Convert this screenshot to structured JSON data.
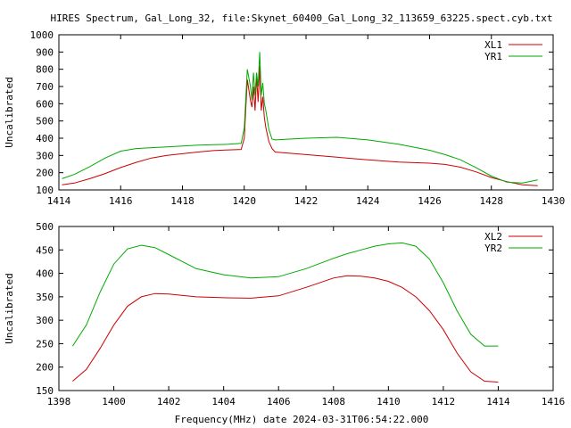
{
  "title": "HIRES Spectrum, Gal_Long_32, file:Skynet_60400_Gal_Long_32_113659_63225.spect.cyb.txt",
  "xlabel": "Frequency(MHz) date 2024-03-31T06:54:22.000",
  "colors": {
    "red": "#cc0000",
    "green": "#00aa00",
    "axis": "#000000"
  },
  "chart_data": [
    {
      "type": "line",
      "ylabel": "Uncalibrated",
      "xlim": [
        1414,
        1430
      ],
      "ylim": [
        100,
        1000
      ],
      "xticks": [
        1414,
        1416,
        1418,
        1420,
        1422,
        1424,
        1426,
        1428,
        1430
      ],
      "yticks": [
        100,
        200,
        300,
        400,
        500,
        600,
        700,
        800,
        900,
        1000
      ],
      "legend": "top-right",
      "series": [
        {
          "name": "XL1",
          "color": "#cc0000",
          "x": [
            1414.1,
            1414.5,
            1415.0,
            1415.5,
            1416.0,
            1416.5,
            1417.0,
            1417.5,
            1418.0,
            1418.5,
            1419.0,
            1419.5,
            1419.9,
            1420.0,
            1420.1,
            1420.2,
            1420.25,
            1420.3,
            1420.35,
            1420.4,
            1420.45,
            1420.5,
            1420.55,
            1420.6,
            1420.65,
            1420.7,
            1420.8,
            1420.9,
            1421.0,
            1422.0,
            1423.0,
            1424.0,
            1425.0,
            1426.0,
            1426.5,
            1427.0,
            1427.5,
            1428.0,
            1428.5,
            1429.0,
            1429.5
          ],
          "y": [
            130,
            140,
            165,
            195,
            230,
            260,
            285,
            300,
            310,
            320,
            328,
            332,
            335,
            400,
            740,
            620,
            580,
            700,
            560,
            760,
            610,
            820,
            560,
            640,
            520,
            460,
            380,
            340,
            320,
            305,
            290,
            275,
            262,
            255,
            248,
            232,
            205,
            172,
            148,
            130,
            125
          ]
        },
        {
          "name": "YR1",
          "color": "#00aa00",
          "x": [
            1414.1,
            1414.5,
            1415.0,
            1415.5,
            1416.0,
            1416.5,
            1417.0,
            1417.5,
            1418.0,
            1418.5,
            1419.0,
            1419.5,
            1419.9,
            1420.0,
            1420.1,
            1420.2,
            1420.25,
            1420.3,
            1420.35,
            1420.4,
            1420.45,
            1420.5,
            1420.55,
            1420.6,
            1420.65,
            1420.7,
            1420.8,
            1420.9,
            1421.0,
            1422.0,
            1423.0,
            1424.0,
            1425.0,
            1426.0,
            1426.5,
            1427.0,
            1427.5,
            1428.0,
            1428.5,
            1429.0,
            1429.5
          ],
          "y": [
            165,
            190,
            235,
            285,
            325,
            340,
            345,
            350,
            355,
            360,
            362,
            365,
            370,
            460,
            800,
            700,
            620,
            780,
            650,
            780,
            700,
            900,
            650,
            720,
            600,
            560,
            450,
            395,
            390,
            400,
            405,
            390,
            365,
            330,
            305,
            275,
            230,
            180,
            145,
            140,
            158
          ]
        }
      ]
    },
    {
      "type": "line",
      "ylabel": "Uncalibrated",
      "xlim": [
        1398,
        1416
      ],
      "ylim": [
        150,
        500
      ],
      "xticks": [
        1398,
        1400,
        1402,
        1404,
        1406,
        1408,
        1410,
        1412,
        1414,
        1416
      ],
      "yticks": [
        150,
        200,
        250,
        300,
        350,
        400,
        450,
        500
      ],
      "legend": "top-right",
      "series": [
        {
          "name": "XL2",
          "color": "#cc0000",
          "x": [
            1398.5,
            1399.0,
            1399.5,
            1400.0,
            1400.5,
            1401.0,
            1401.5,
            1402.0,
            1403.0,
            1404.0,
            1405.0,
            1406.0,
            1407.0,
            1408.0,
            1408.5,
            1409.0,
            1409.5,
            1410.0,
            1410.5,
            1411.0,
            1411.5,
            1412.0,
            1412.5,
            1413.0,
            1413.5,
            1414.0
          ],
          "y": [
            170,
            195,
            240,
            290,
            330,
            350,
            357,
            356,
            350,
            348,
            347,
            352,
            370,
            390,
            395,
            394,
            390,
            383,
            370,
            350,
            320,
            280,
            230,
            190,
            170,
            168
          ]
        },
        {
          "name": "YR2",
          "color": "#00aa00",
          "x": [
            1398.5,
            1399.0,
            1399.5,
            1400.0,
            1400.5,
            1401.0,
            1401.5,
            1402.0,
            1403.0,
            1404.0,
            1405.0,
            1406.0,
            1407.0,
            1408.0,
            1408.5,
            1409.0,
            1409.5,
            1410.0,
            1410.5,
            1411.0,
            1411.5,
            1412.0,
            1412.5,
            1413.0,
            1413.5,
            1414.0
          ],
          "y": [
            245,
            290,
            360,
            420,
            452,
            460,
            455,
            440,
            410,
            397,
            390,
            393,
            410,
            432,
            442,
            450,
            458,
            463,
            465,
            458,
            430,
            380,
            320,
            270,
            245,
            245
          ]
        }
      ]
    }
  ]
}
